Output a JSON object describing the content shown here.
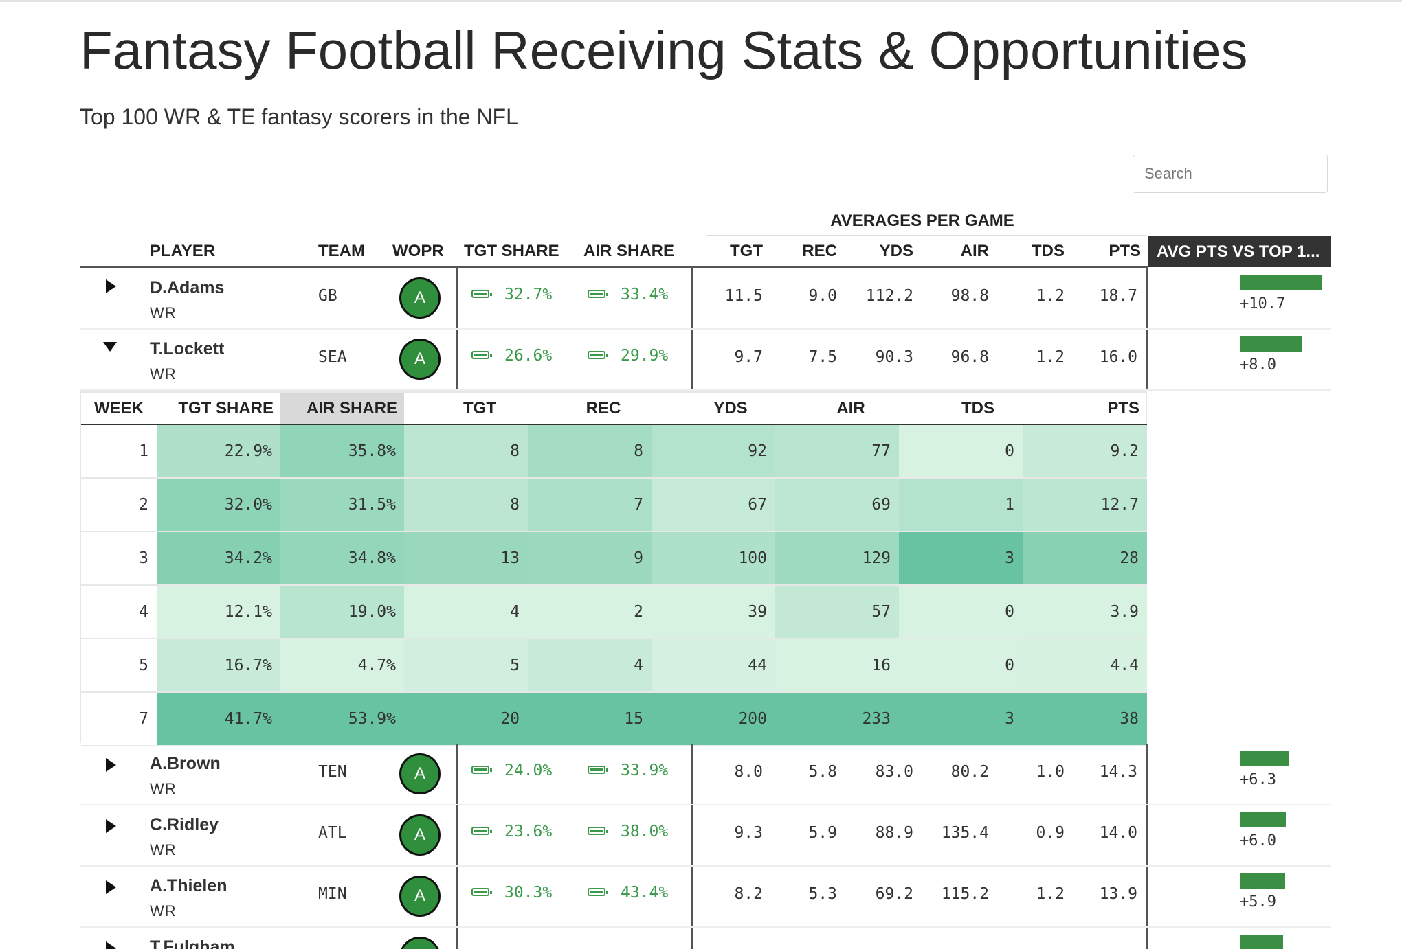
{
  "title": "Fantasy Football Receiving Stats & Opportunities",
  "subtitle": "Top 100 WR & TE fantasy scorers in the NFL",
  "search": {
    "placeholder": "Search"
  },
  "group_header": "AVERAGES PER GAME",
  "columns": {
    "player": "PLAYER",
    "team": "TEAM",
    "wopr": "WOPR",
    "tgt_share": "TGT SHARE",
    "air_share": "AIR SHARE",
    "tgt": "TGT",
    "rec": "REC",
    "yds": "YDS",
    "air": "AIR",
    "tds": "TDS",
    "pts": "PTS",
    "avg_vs_top": "AVG PTS VS TOP 1..."
  },
  "colors": {
    "accent_green": "#3a9a4a",
    "bar_green": "#3b8f45",
    "grade_green": "#2f8f3c",
    "header_dark": "#333333"
  },
  "players": [
    {
      "name": "D.Adams",
      "pos": "WR",
      "team": "GB",
      "grade": "A",
      "tgt_share": "32.7%",
      "air_share": "33.4%",
      "tgt": "11.5",
      "rec": "9.0",
      "yds": "112.2",
      "air": "98.8",
      "tds": "1.2",
      "pts": "18.7",
      "vs_top": "+10.7",
      "vs_top_value": 10.7,
      "expanded": false
    },
    {
      "name": "T.Lockett",
      "pos": "WR",
      "team": "SEA",
      "grade": "A",
      "tgt_share": "26.6%",
      "air_share": "29.9%",
      "tgt": "9.7",
      "rec": "7.5",
      "yds": "90.3",
      "air": "96.8",
      "tds": "1.2",
      "pts": "16.0",
      "vs_top": "+8.0",
      "vs_top_value": 8.0,
      "expanded": true
    },
    {
      "name": "A.Brown",
      "pos": "WR",
      "team": "TEN",
      "grade": "A",
      "tgt_share": "24.0%",
      "air_share": "33.9%",
      "tgt": "8.0",
      "rec": "5.8",
      "yds": "83.0",
      "air": "80.2",
      "tds": "1.0",
      "pts": "14.3",
      "vs_top": "+6.3",
      "vs_top_value": 6.3,
      "expanded": false
    },
    {
      "name": "C.Ridley",
      "pos": "WR",
      "team": "ATL",
      "grade": "A",
      "tgt_share": "23.6%",
      "air_share": "38.0%",
      "tgt": "9.3",
      "rec": "5.9",
      "yds": "88.9",
      "air": "135.4",
      "tds": "0.9",
      "pts": "14.0",
      "vs_top": "+6.0",
      "vs_top_value": 6.0,
      "expanded": false
    },
    {
      "name": "A.Thielen",
      "pos": "WR",
      "team": "MIN",
      "grade": "A",
      "tgt_share": "30.3%",
      "air_share": "43.4%",
      "tgt": "8.2",
      "rec": "5.3",
      "yds": "69.2",
      "air": "115.2",
      "tds": "1.2",
      "pts": "13.9",
      "vs_top": "+5.9",
      "vs_top_value": 5.9,
      "expanded": false
    },
    {
      "name": "T.Fulgham",
      "pos": "",
      "team": "",
      "grade": "A",
      "tgt_share": "",
      "air_share": "",
      "tgt": "",
      "rec": "",
      "yds": "",
      "air": "",
      "tds": "",
      "pts": "",
      "vs_top": "",
      "vs_top_value": 5.6,
      "expanded": false
    }
  ],
  "detail": {
    "columns": [
      "WEEK",
      "TGT SHARE",
      "AIR SHARE",
      "TGT",
      "REC",
      "YDS",
      "AIR",
      "TDS",
      "PTS"
    ],
    "sorted_column": "AIR SHARE",
    "rows": [
      {
        "week": "1",
        "tgt_share": "22.9%",
        "air_share": "35.8%",
        "tgt": "8",
        "rec": "8",
        "yds": "92",
        "air": "77",
        "tds": "0",
        "pts": "9.2"
      },
      {
        "week": "2",
        "tgt_share": "32.0%",
        "air_share": "31.5%",
        "tgt": "8",
        "rec": "7",
        "yds": "67",
        "air": "69",
        "tds": "1",
        "pts": "12.7"
      },
      {
        "week": "3",
        "tgt_share": "34.2%",
        "air_share": "34.8%",
        "tgt": "13",
        "rec": "9",
        "yds": "100",
        "air": "129",
        "tds": "3",
        "pts": "28"
      },
      {
        "week": "4",
        "tgt_share": "12.1%",
        "air_share": "19.0%",
        "tgt": "4",
        "rec": "2",
        "yds": "39",
        "air": "57",
        "tds": "0",
        "pts": "3.9"
      },
      {
        "week": "5",
        "tgt_share": "16.7%",
        "air_share": "4.7%",
        "tgt": "5",
        "rec": "4",
        "yds": "44",
        "air": "16",
        "tds": "0",
        "pts": "4.4"
      },
      {
        "week": "7",
        "tgt_share": "41.7%",
        "air_share": "53.9%",
        "tgt": "20",
        "rec": "15",
        "yds": "200",
        "air": "233",
        "tds": "3",
        "pts": "38"
      }
    ]
  }
}
